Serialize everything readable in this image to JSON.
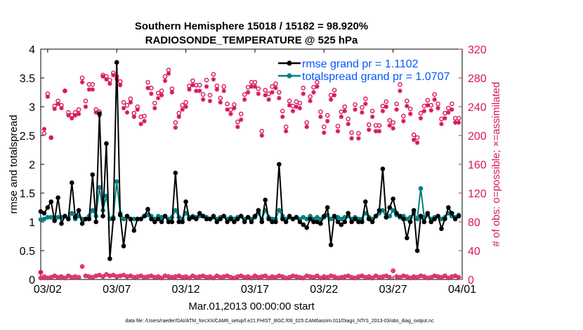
{
  "chart_data": {
    "type": "line",
    "title_line1": "Southern Hemisphere 15018 / 15182 = 98.920%",
    "title_line2": "RADIOSONDE_TEMPERATURE @ 525 hPa",
    "xlabel": "Mar.01,2013 00:00:00 start",
    "ylabel_left": "rmse and totalspread",
    "ylabel_right": "# of obs: o=possible; ×=assimilated",
    "footnote": "data file: /Users/raeder/DAI/ATM_forcXX/CAM6_setup/f.e21.FHIST_BGC.f09_025.CAM6assim.011/Diags_NTrS_2013-03/obs_diag_output.nc",
    "xlim": [
      1.5,
      32.0
    ],
    "ylim_left": [
      0,
      4
    ],
    "ylim_right": [
      0,
      320
    ],
    "x_ticks": [
      {
        "x": 2,
        "label": "03/02"
      },
      {
        "x": 7,
        "label": "03/07"
      },
      {
        "x": 12,
        "label": "03/12"
      },
      {
        "x": 17,
        "label": "03/17"
      },
      {
        "x": 22,
        "label": "03/22"
      },
      {
        "x": 27,
        "label": "03/27"
      },
      {
        "x": 32,
        "label": "04/01"
      }
    ],
    "y_ticks_left": [
      {
        "v": 0,
        "label": "0"
      },
      {
        "v": 0.5,
        "label": "0.5"
      },
      {
        "v": 1,
        "label": "1"
      },
      {
        "v": 1.5,
        "label": "1.5"
      },
      {
        "v": 2,
        "label": "2"
      },
      {
        "v": 2.5,
        "label": "2.5"
      },
      {
        "v": 3,
        "label": "3"
      },
      {
        "v": 3.5,
        "label": "3.5"
      },
      {
        "v": 4,
        "label": "4"
      }
    ],
    "y_ticks_right": [
      {
        "v": 0,
        "label": "0"
      },
      {
        "v": 40,
        "label": "40"
      },
      {
        "v": 80,
        "label": "80"
      },
      {
        "v": 120,
        "label": "120"
      },
      {
        "v": 160,
        "label": "160"
      },
      {
        "v": 200,
        "label": "200"
      },
      {
        "v": 240,
        "label": "240"
      },
      {
        "v": 280,
        "label": "280"
      },
      {
        "v": 320,
        "label": "320"
      }
    ],
    "legend": [
      {
        "name": "rmse grand pr = 1.1102",
        "color": "#000000"
      },
      {
        "name": "totalspread grand pr = 1.0707",
        "color": "#008080"
      }
    ],
    "colors": {
      "rmse": "#000000",
      "totalspread": "#008080",
      "obs": "#d6175f",
      "legend_text": "#0057ff"
    },
    "x": [
      1.5,
      1.75,
      2.0,
      2.25,
      2.5,
      2.75,
      3.0,
      3.25,
      3.5,
      3.75,
      4.0,
      4.25,
      4.5,
      4.75,
      5.0,
      5.25,
      5.5,
      5.75,
      6.0,
      6.25,
      6.5,
      6.75,
      7.0,
      7.25,
      7.5,
      7.75,
      8.0,
      8.25,
      8.5,
      8.75,
      9.0,
      9.25,
      9.5,
      9.75,
      10.0,
      10.25,
      10.5,
      10.75,
      11.0,
      11.25,
      11.5,
      11.75,
      12.0,
      12.25,
      12.5,
      12.75,
      13.0,
      13.25,
      13.5,
      13.75,
      14.0,
      14.25,
      14.5,
      14.75,
      15.0,
      15.25,
      15.5,
      15.75,
      16.0,
      16.25,
      16.5,
      16.75,
      17.0,
      17.25,
      17.5,
      17.75,
      18.0,
      18.25,
      18.5,
      18.75,
      19.0,
      19.25,
      19.5,
      19.75,
      20.0,
      20.25,
      20.5,
      20.75,
      21.0,
      21.25,
      21.5,
      21.75,
      22.0,
      22.25,
      22.5,
      22.75,
      23.0,
      23.25,
      23.5,
      23.75,
      24.0,
      24.25,
      24.5,
      24.75,
      25.0,
      25.25,
      25.5,
      25.75,
      26.0,
      26.25,
      26.5,
      26.75,
      27.0,
      27.25,
      27.5,
      27.75,
      28.0,
      28.25,
      28.5,
      28.75,
      29.0,
      29.25,
      29.5,
      29.75,
      30.0,
      30.25,
      30.5,
      30.75,
      31.0,
      31.25,
      31.5,
      31.75
    ],
    "series": [
      {
        "name": "rmse",
        "values": [
          1.18,
          1.15,
          1.25,
          1.35,
          1.02,
          1.42,
          0.97,
          1.1,
          1.05,
          1.68,
          1.08,
          1.2,
          0.97,
          1.05,
          1.05,
          1.82,
          1.0,
          2.88,
          1.1,
          2.36,
          0.36,
          1.05,
          3.77,
          1.12,
          0.58,
          1.1,
          1.05,
          0.85,
          1.05,
          1.05,
          1.1,
          1.22,
          1.05,
          1.0,
          1.05,
          1.0,
          1.1,
          1.0,
          1.0,
          1.85,
          1.0,
          1.0,
          1.35,
          1.05,
          1.08,
          1.05,
          1.15,
          1.1,
          1.05,
          1.05,
          1.1,
          1.0,
          1.05,
          1.1,
          1.0,
          1.05,
          1.0,
          1.05,
          1.1,
          1.0,
          1.08,
          1.0,
          1.1,
          1.2,
          1.0,
          1.38,
          1.05,
          1.0,
          1.0,
          2.0,
          1.05,
          1.0,
          1.1,
          1.05,
          1.08,
          1.0,
          0.95,
          0.9,
          1.05,
          1.0,
          1.0,
          0.97,
          1.1,
          1.25,
          0.6,
          1.1,
          1.0,
          0.95,
          1.0,
          1.15,
          1.0,
          1.05,
          1.0,
          1.0,
          1.35,
          1.05,
          1.0,
          1.1,
          1.2,
          1.92,
          1.08,
          1.25,
          1.4,
          1.15,
          1.1,
          1.05,
          0.72,
          1.0,
          1.2,
          0.5,
          1.1,
          1.0,
          1.15,
          1.0,
          1.05,
          1.1,
          0.88,
          1.05,
          1.25,
          1.15,
          1.05,
          1.1
        ]
      },
      {
        "name": "totalspread",
        "values": [
          1.04,
          1.05,
          1.08,
          1.08,
          1.05,
          1.08,
          1.08,
          1.1,
          1.05,
          1.15,
          1.05,
          1.1,
          1.05,
          1.05,
          1.1,
          1.2,
          1.1,
          1.6,
          1.2,
          1.45,
          1.05,
          1.08,
          1.7,
          1.15,
          1.05,
          1.1,
          1.05,
          1.05,
          1.05,
          1.05,
          1.1,
          1.12,
          1.1,
          1.05,
          1.1,
          1.08,
          1.1,
          1.05,
          1.08,
          1.2,
          1.08,
          1.05,
          1.15,
          1.08,
          1.1,
          1.08,
          1.1,
          1.1,
          1.08,
          1.05,
          1.08,
          1.05,
          1.08,
          1.1,
          1.05,
          1.08,
          1.05,
          1.08,
          1.1,
          1.05,
          1.08,
          1.05,
          1.08,
          1.15,
          1.05,
          1.2,
          1.08,
          1.05,
          1.05,
          1.2,
          1.1,
          1.05,
          1.08,
          1.05,
          1.08,
          1.05,
          1.08,
          1.05,
          1.1,
          1.05,
          1.08,
          1.05,
          1.08,
          1.12,
          1.05,
          1.1,
          1.08,
          1.05,
          1.08,
          1.1,
          1.05,
          1.08,
          1.05,
          1.05,
          1.15,
          1.08,
          1.05,
          1.1,
          1.15,
          1.2,
          1.08,
          1.1,
          1.2,
          1.12,
          1.08,
          1.1,
          1.05,
          1.08,
          1.15,
          1.05,
          1.58,
          1.08,
          1.12,
          1.05,
          1.08,
          1.1,
          1.05,
          1.08,
          1.15,
          1.1,
          1.08,
          1.12
        ]
      },
      {
        "name": "obs_possible",
        "values": [
          10,
          203,
          258,
          197,
          241,
          248,
          242,
          262,
          232,
          228,
          232,
          236,
          280,
          248,
          271,
          271,
          236,
          233,
          284,
          282,
          277,
          287,
          282,
          275,
          246,
          242,
          251,
          231,
          240,
          226,
          227,
          274,
          266,
          245,
          259,
          262,
          282,
          291,
          265,
          218,
          231,
          242,
          246,
          269,
          276,
          270,
          270,
          257,
          277,
          256,
          285,
          269,
          252,
          268,
          244,
          236,
          243,
          219,
          230,
          257,
          267,
          274,
          274,
          265,
          206,
          263,
          258,
          268,
          272,
          260,
          234,
          212,
          248,
          241,
          247,
          245,
          266,
          218,
          254,
          267,
          274,
          233,
          212,
          228,
          256,
          263,
          213,
          233,
          240,
          223,
          204,
          243,
          203,
          239,
          251,
          215,
          234,
          214,
          214,
          241,
          247,
          221,
          218,
          244,
          271,
          227,
          248,
          237,
          201,
          197,
          231,
          241,
          249,
          242,
          257,
          244,
          223,
          231,
          238,
          244,
          224,
          224
        ]
      },
      {
        "name": "obs_assimilated",
        "values": [
          10,
          209,
          254,
          197,
          237,
          244,
          238,
          262,
          228,
          224,
          228,
          230,
          274,
          240,
          264,
          264,
          232,
          228,
          282,
          278,
          272,
          284,
          278,
          270,
          238,
          232,
          246,
          226,
          236,
          216,
          220,
          266,
          258,
          238,
          252,
          256,
          276,
          286,
          260,
          211,
          226,
          236,
          240,
          264,
          270,
          262,
          262,
          250,
          268,
          248,
          278,
          264,
          246,
          262,
          236,
          230,
          238,
          212,
          222,
          250,
          260,
          268,
          268,
          258,
          200,
          256,
          250,
          260,
          266,
          252,
          226,
          206,
          242,
          234,
          240,
          238,
          258,
          212,
          248,
          260,
          268,
          226,
          204,
          220,
          250,
          256,
          206,
          226,
          234,
          216,
          196,
          236,
          196,
          232,
          244,
          208,
          226,
          206,
          206,
          234,
          240,
          214,
          210,
          236,
          262,
          220,
          241,
          230,
          194,
          190,
          224,
          234,
          242,
          235,
          250,
          238,
          216,
          224,
          232,
          236,
          218,
          218
        ]
      },
      {
        "name": "obs_bottom",
        "values": [
          2,
          4,
          2,
          3,
          5,
          3,
          4,
          2,
          5,
          3,
          4,
          3,
          18,
          5,
          4,
          3,
          5,
          6,
          4,
          7,
          5,
          6,
          4,
          5,
          6,
          4,
          5,
          3,
          4,
          5,
          3,
          4,
          5,
          3,
          4,
          2,
          5,
          4,
          3,
          4,
          5,
          3,
          4,
          2,
          5,
          3,
          4,
          5,
          3,
          4,
          2,
          5,
          3,
          4,
          5,
          3,
          2,
          4,
          5,
          3,
          4,
          2,
          5,
          3,
          4,
          5,
          2,
          4,
          3,
          5,
          4,
          2,
          3,
          5,
          4,
          3,
          2,
          5,
          4,
          3,
          5,
          2,
          4,
          3,
          5,
          4,
          2,
          3,
          4,
          5,
          3,
          2,
          4,
          5,
          3,
          4,
          2,
          5,
          3,
          4,
          5,
          3,
          12,
          4,
          3,
          5,
          4,
          2,
          4,
          3,
          5,
          4,
          2,
          3,
          5,
          4,
          3,
          5,
          2,
          4,
          5,
          3
        ]
      }
    ]
  }
}
